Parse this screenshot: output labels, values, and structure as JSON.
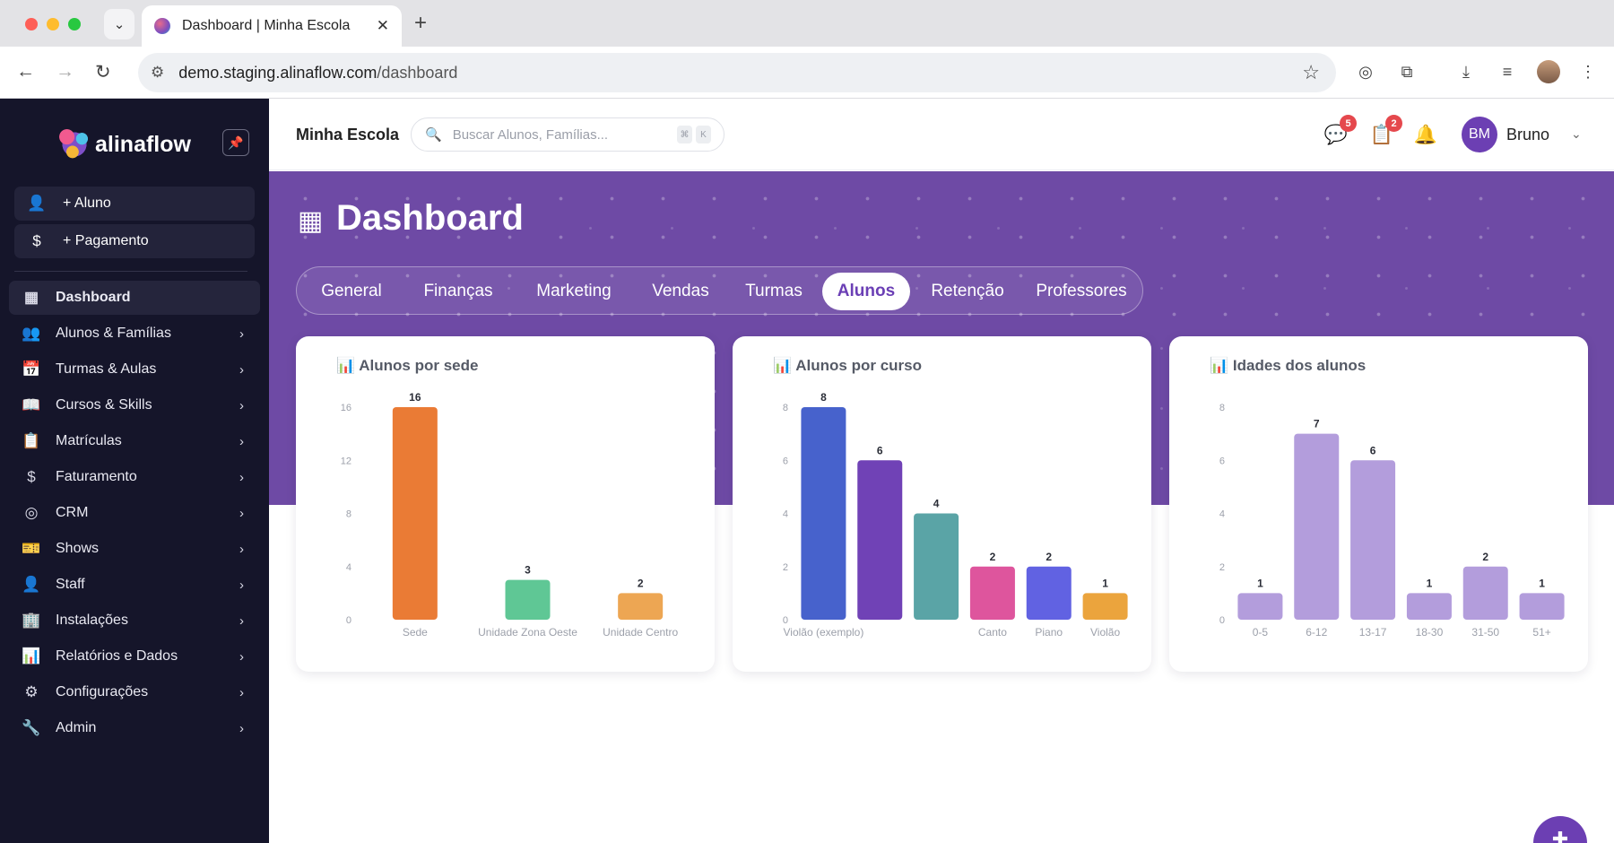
{
  "browser": {
    "tab_title": "Dashboard | Minha Escola",
    "url_host": "demo.staging.alinaflow.com",
    "url_path": "/dashboard"
  },
  "sidebar": {
    "logo": "alinaflow",
    "quick_actions": [
      {
        "label": "+ Aluno",
        "icon": "add-user-icon"
      },
      {
        "label": "+ Pagamento",
        "icon": "dollar-icon"
      }
    ],
    "items": [
      {
        "label": "Dashboard",
        "icon": "grid-icon",
        "active": true
      },
      {
        "label": "Alunos & Famílias",
        "icon": "users-icon"
      },
      {
        "label": "Turmas & Aulas",
        "icon": "calendar-icon"
      },
      {
        "label": "Cursos & Skills",
        "icon": "book-icon"
      },
      {
        "label": "Matrículas",
        "icon": "clipboard-icon"
      },
      {
        "label": "Faturamento",
        "icon": "dollar-icon"
      },
      {
        "label": "CRM",
        "icon": "target-icon"
      },
      {
        "label": "Shows",
        "icon": "ticket-icon"
      },
      {
        "label": "Staff",
        "icon": "user-cog-icon"
      },
      {
        "label": "Instalações",
        "icon": "building-icon"
      },
      {
        "label": "Relatórios e Dados",
        "icon": "bar-chart-icon"
      },
      {
        "label": "Configurações",
        "icon": "gear-icon"
      },
      {
        "label": "Admin",
        "icon": "wrench-icon"
      }
    ]
  },
  "header": {
    "school_name": "Minha Escola",
    "search_placeholder": "Buscar Alunos, Famílias...",
    "search_shortcut": [
      "⌘",
      "K"
    ],
    "messages_badge": "5",
    "tasks_badge": "2",
    "user_initials": "BM",
    "user_name": "Bruno"
  },
  "page": {
    "title": "Dashboard",
    "tabs": [
      {
        "label": "General"
      },
      {
        "label": "Finanças"
      },
      {
        "label": "Marketing"
      },
      {
        "label": "Vendas"
      },
      {
        "label": "Turmas"
      },
      {
        "label": "Alunos",
        "active": true
      },
      {
        "label": "Retenção"
      },
      {
        "label": "Professores"
      }
    ]
  },
  "chart_data": [
    {
      "type": "bar",
      "title": "📊 Alunos por sede",
      "categories": [
        "Sede",
        "Unidade Zona Oeste",
        "Unidade Centro"
      ],
      "values": [
        16,
        3,
        2
      ],
      "colors": [
        "#ea7b35",
        "#5fc795",
        "#eda653"
      ],
      "yticks": [
        0,
        4,
        8,
        12,
        16
      ],
      "ylim": [
        0,
        16
      ],
      "data_labels": true,
      "grid": false
    },
    {
      "type": "bar",
      "title": "📊 Alunos por curso",
      "categories": [
        "Violão (exemplo)",
        "",
        "",
        "Canto",
        "Piano",
        "Violão"
      ],
      "values": [
        8,
        6,
        4,
        2,
        2,
        1
      ],
      "colors": [
        "#4762cc",
        "#7042b6",
        "#5aa4a6",
        "#de559d",
        "#6162e2",
        "#eba43d"
      ],
      "yticks": [
        0,
        2,
        4,
        6,
        8
      ],
      "ylim": [
        0,
        8
      ],
      "data_labels": true,
      "grid": false
    },
    {
      "type": "bar",
      "title": "📊 Idades dos alunos",
      "categories": [
        "0-5",
        "6-12",
        "13-17",
        "18-30",
        "31-50",
        "51+"
      ],
      "values": [
        1,
        7,
        6,
        1,
        2,
        1
      ],
      "colors": [
        "#b39ddc",
        "#b39ddc",
        "#b39ddc",
        "#b39ddc",
        "#b39ddc",
        "#b39ddc"
      ],
      "yticks": [
        0,
        2,
        4,
        6,
        8
      ],
      "ylim": [
        0,
        8
      ],
      "data_labels": true,
      "grid": false
    }
  ]
}
